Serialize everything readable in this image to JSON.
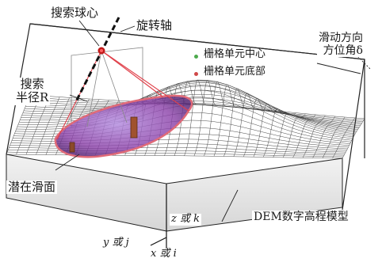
{
  "labels": {
    "search_center": "搜索球心",
    "rotation_axis": "旋转轴",
    "search_radius_line1": "搜索",
    "search_radius_line2": "半径R",
    "slide_direction_line1": "滑动方向",
    "slide_direction_line2": "方位角δ",
    "potential_slip_surface": "潜在滑面",
    "dem_model": "DEM数字高程模型",
    "axis_z": "z 或 k",
    "axis_y": "y 或 j",
    "axis_x": "x 或 i"
  },
  "legend": [
    {
      "label": "栅格单元中心",
      "color": "#4daa4d"
    },
    {
      "label": "栅格单元底部",
      "color": "#d04848"
    }
  ],
  "colors": {
    "mesh": "#333333",
    "slip_fill": "#8a3fa8",
    "slip_edge": "#e06a78",
    "ray": "#e0404a",
    "center": "#c01818"
  }
}
